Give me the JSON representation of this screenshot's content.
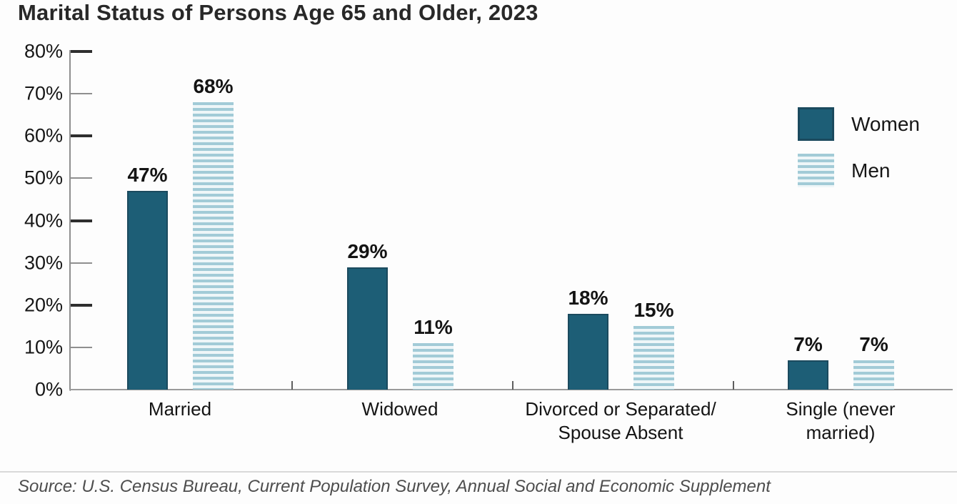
{
  "title": "Marital Status of Persons Age 65 and Older, 2023",
  "source": {
    "text": "Source: U.S. Census Bureau, Current Population Survey, Annual Social and Economic Supplement"
  },
  "colors": {
    "women_bar": "#1d5e76",
    "women_bar_border": "#1b4a5e",
    "men_stripe": "#a2cbd7",
    "men_stripe_gap": "#eef6f8",
    "axis": "#8f8f8f",
    "text": "#161616"
  },
  "legend": {
    "items": [
      {
        "label": "Women",
        "swatch": "solid-teal-square"
      },
      {
        "label": "Men",
        "swatch": "striped-lightblue-square"
      }
    ]
  },
  "chart_data": {
    "type": "bar",
    "grouped": true,
    "title": "Marital Status of Persons Age 65 and Older, 2023",
    "categories": [
      "Married",
      "Widowed",
      "Divorced or Separated/Spouse Absent",
      "Single (never married)"
    ],
    "category_label_lines": [
      [
        "Married"
      ],
      [
        "Widowed"
      ],
      [
        "Divorced or Separated/",
        "Spouse Absent"
      ],
      [
        "Single (never",
        "married)"
      ]
    ],
    "series": [
      {
        "name": "Women",
        "values": [
          47,
          29,
          18,
          7
        ],
        "data_labels": [
          "47%",
          "29%",
          "18%",
          "7%"
        ]
      },
      {
        "name": "Men",
        "values": [
          68,
          11,
          15,
          7
        ],
        "data_labels": [
          "68%",
          "11%",
          "15%",
          "7%"
        ]
      }
    ],
    "ylim": [
      0,
      80
    ],
    "y_tick_step": 10,
    "y_ticks": [
      "0%",
      "10%",
      "20%",
      "30%",
      "40%",
      "50%",
      "60%",
      "70%",
      "80%"
    ],
    "xlabel": "",
    "ylabel": "",
    "grid": false,
    "legend_position": "upper right",
    "source": "Source: U.S. Census Bureau, Current Population Survey, Annual Social and Economic Supplement"
  }
}
